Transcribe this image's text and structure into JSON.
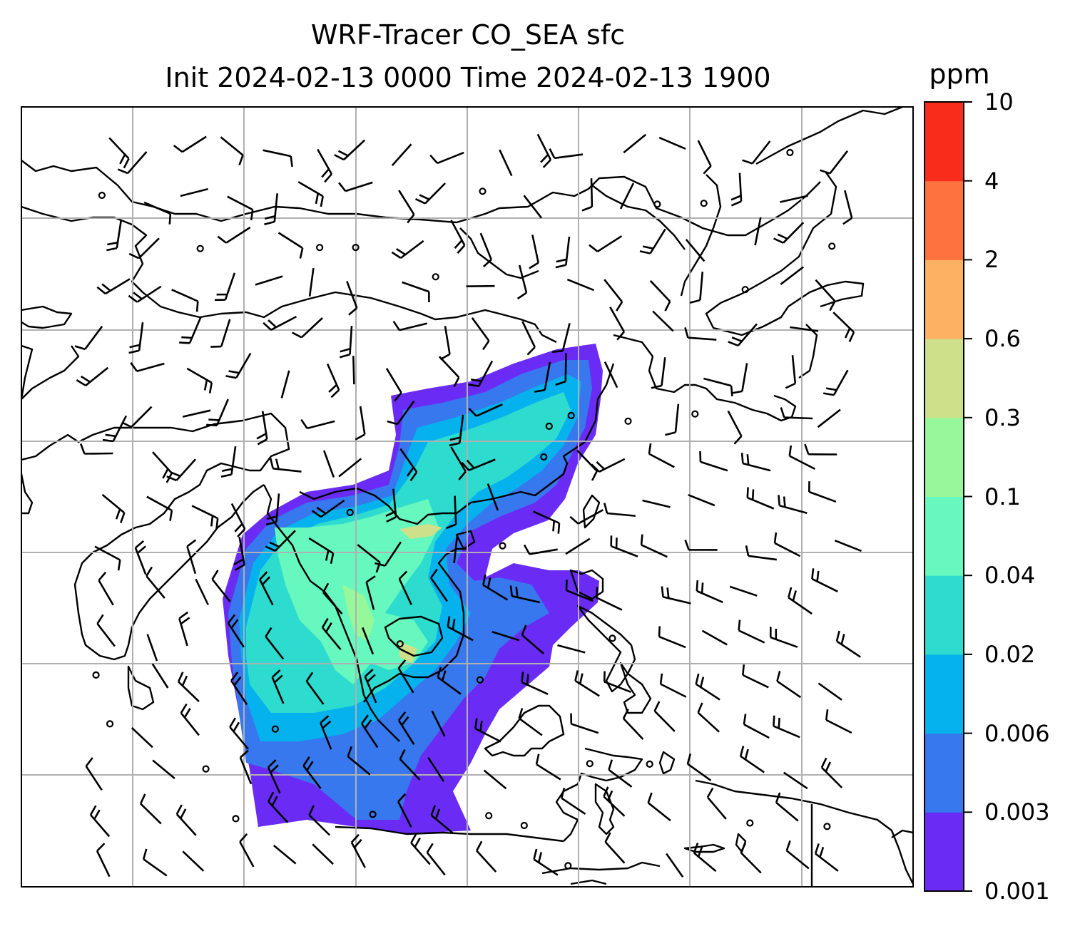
{
  "title": {
    "line1": "WRF-Tracer CO_SEA sfc",
    "line2": "Init 2024-02-13 0000 Time 2024-02-13 1900"
  },
  "colorbar": {
    "unit": "ppm",
    "levels": [
      "0.001",
      "0.003",
      "0.006",
      "0.02",
      "0.04",
      "0.1",
      "0.3",
      "0.6",
      "2",
      "4",
      "10"
    ],
    "colors": [
      "#6a2cf5",
      "#3778ee",
      "#05b2ee",
      "#2ddccf",
      "#66f8bf",
      "#96f79b",
      "#cfe08a",
      "#fdb163",
      "#fe723d",
      "#f72c1a"
    ]
  },
  "map": {
    "field": "CO_SEA tracer concentration, surface",
    "overlays": [
      "coastlines",
      "wind-barbs",
      "lat-lon-gridlines"
    ],
    "gridline_color": "#b0b0b0"
  }
}
